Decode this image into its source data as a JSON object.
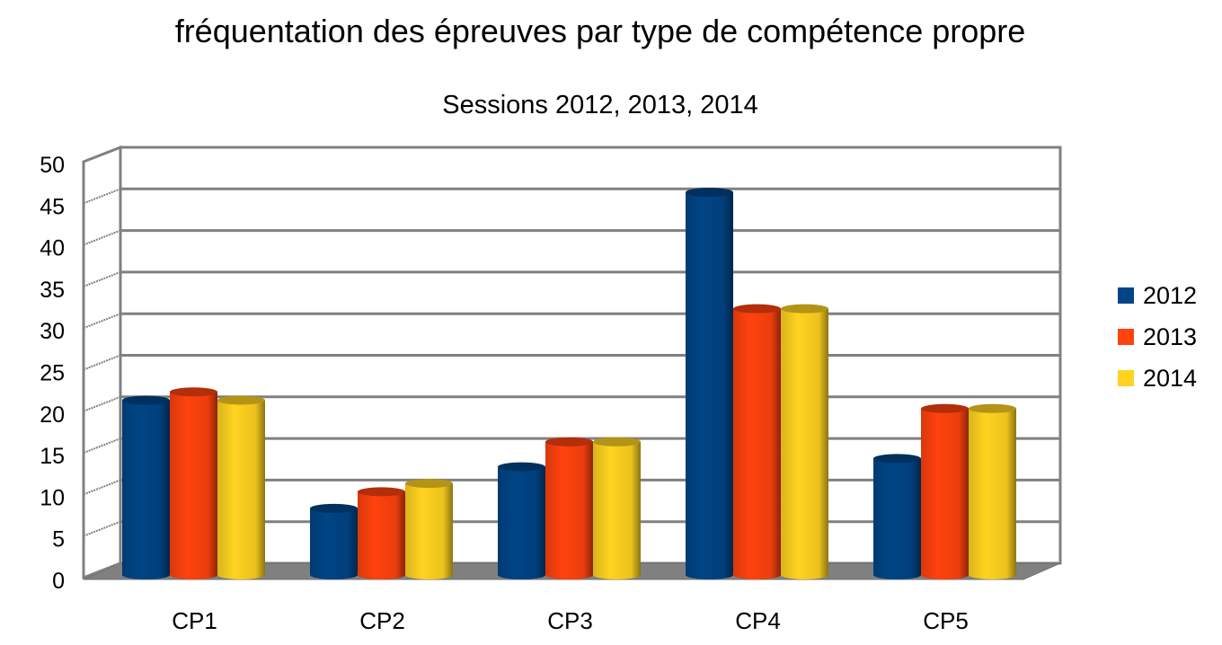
{
  "chart_data": {
    "type": "bar",
    "style": "3d-cylinder",
    "title": "fréquentation des épreuves par type de compétence propre",
    "subtitle": "Sessions 2012, 2013, 2014",
    "xlabel": "",
    "ylabel": "",
    "categories": [
      "CP1",
      "CP2",
      "CP3",
      "CP4",
      "CP5"
    ],
    "series": [
      {
        "name": "2012",
        "color": "#004586",
        "values": [
          21,
          8,
          13,
          46,
          14
        ]
      },
      {
        "name": "2013",
        "color": "#ff420e",
        "values": [
          22,
          10,
          16,
          32,
          20
        ]
      },
      {
        "name": "2014",
        "color": "#ffd320",
        "values": [
          21,
          11,
          16,
          32,
          20
        ]
      }
    ],
    "ylim": [
      0,
      50
    ],
    "yticks": [
      "0",
      "5",
      "10",
      "15",
      "20",
      "25",
      "30",
      "35",
      "40",
      "45",
      "50"
    ],
    "grid": true,
    "legend_position": "right"
  }
}
